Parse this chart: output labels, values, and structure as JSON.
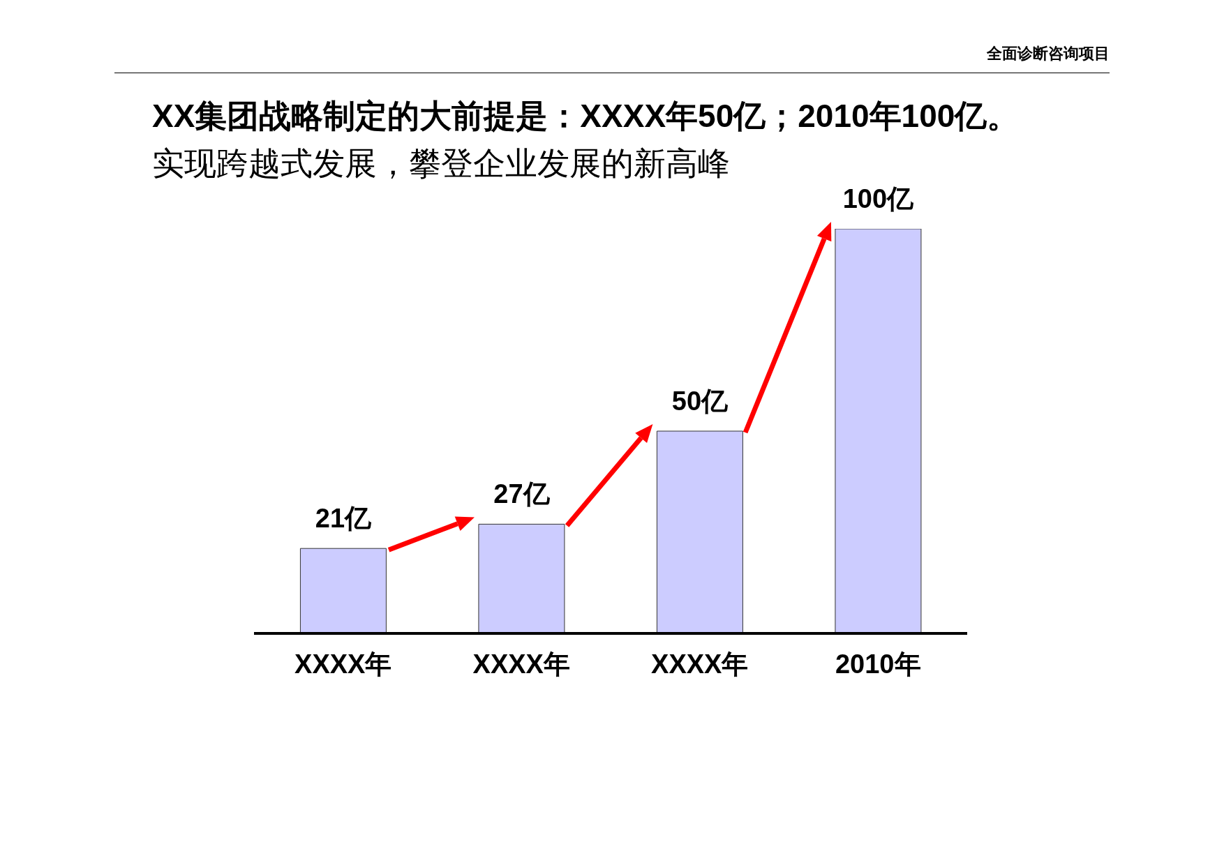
{
  "chart_data": {
    "type": "bar",
    "title": "XX集团战略制定的大前提是：XXXX年50亿；2010年100亿。",
    "subtitle": "实现跨越式发展，攀登企业发展的新高峰",
    "annotations": [
      "全面诊断咨询项目"
    ],
    "categories": [
      "XXXX年",
      "XXXX年",
      "XXXX年",
      "2010年"
    ],
    "values": [
      21,
      27,
      50,
      100
    ],
    "value_labels": [
      "21亿",
      "27亿",
      "50亿",
      "100亿"
    ],
    "color": "#ccccff"
  }
}
